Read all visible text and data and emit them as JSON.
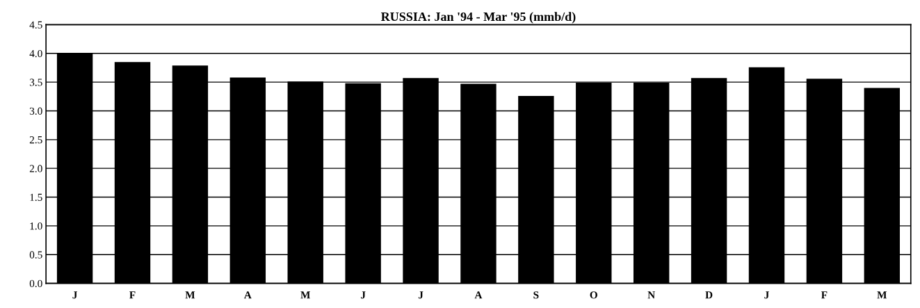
{
  "chart_data": {
    "type": "bar",
    "title": "RUSSIA: Jan '94 - Mar '95 (mmb/d)",
    "categories": [
      "J",
      "F",
      "M",
      "A",
      "M",
      "J",
      "J",
      "A",
      "S",
      "O",
      "N",
      "D",
      "J",
      "F",
      "M"
    ],
    "values": [
      4.0,
      3.85,
      3.79,
      3.58,
      3.51,
      3.48,
      3.57,
      3.47,
      3.26,
      3.49,
      3.49,
      3.57,
      3.76,
      3.56,
      3.4
    ],
    "color": "#000000",
    "ylim": [
      0,
      4.5
    ],
    "yticks": [
      {
        "value": 0,
        "label": "0.0"
      },
      {
        "value": 0.5,
        "label": "0.5"
      },
      {
        "value": 1.0,
        "label": "1.0"
      },
      {
        "value": 1.5,
        "label": "1.5"
      },
      {
        "value": 2.0,
        "label": "2.0"
      },
      {
        "value": 2.5,
        "label": "2.5"
      },
      {
        "value": 3.0,
        "label": "3.0"
      },
      {
        "value": 3.5,
        "label": "3.5"
      },
      {
        "value": 4.0,
        "label": "4.0"
      },
      {
        "value": 4.5,
        "label": "4.5"
      }
    ],
    "grid": "y"
  }
}
